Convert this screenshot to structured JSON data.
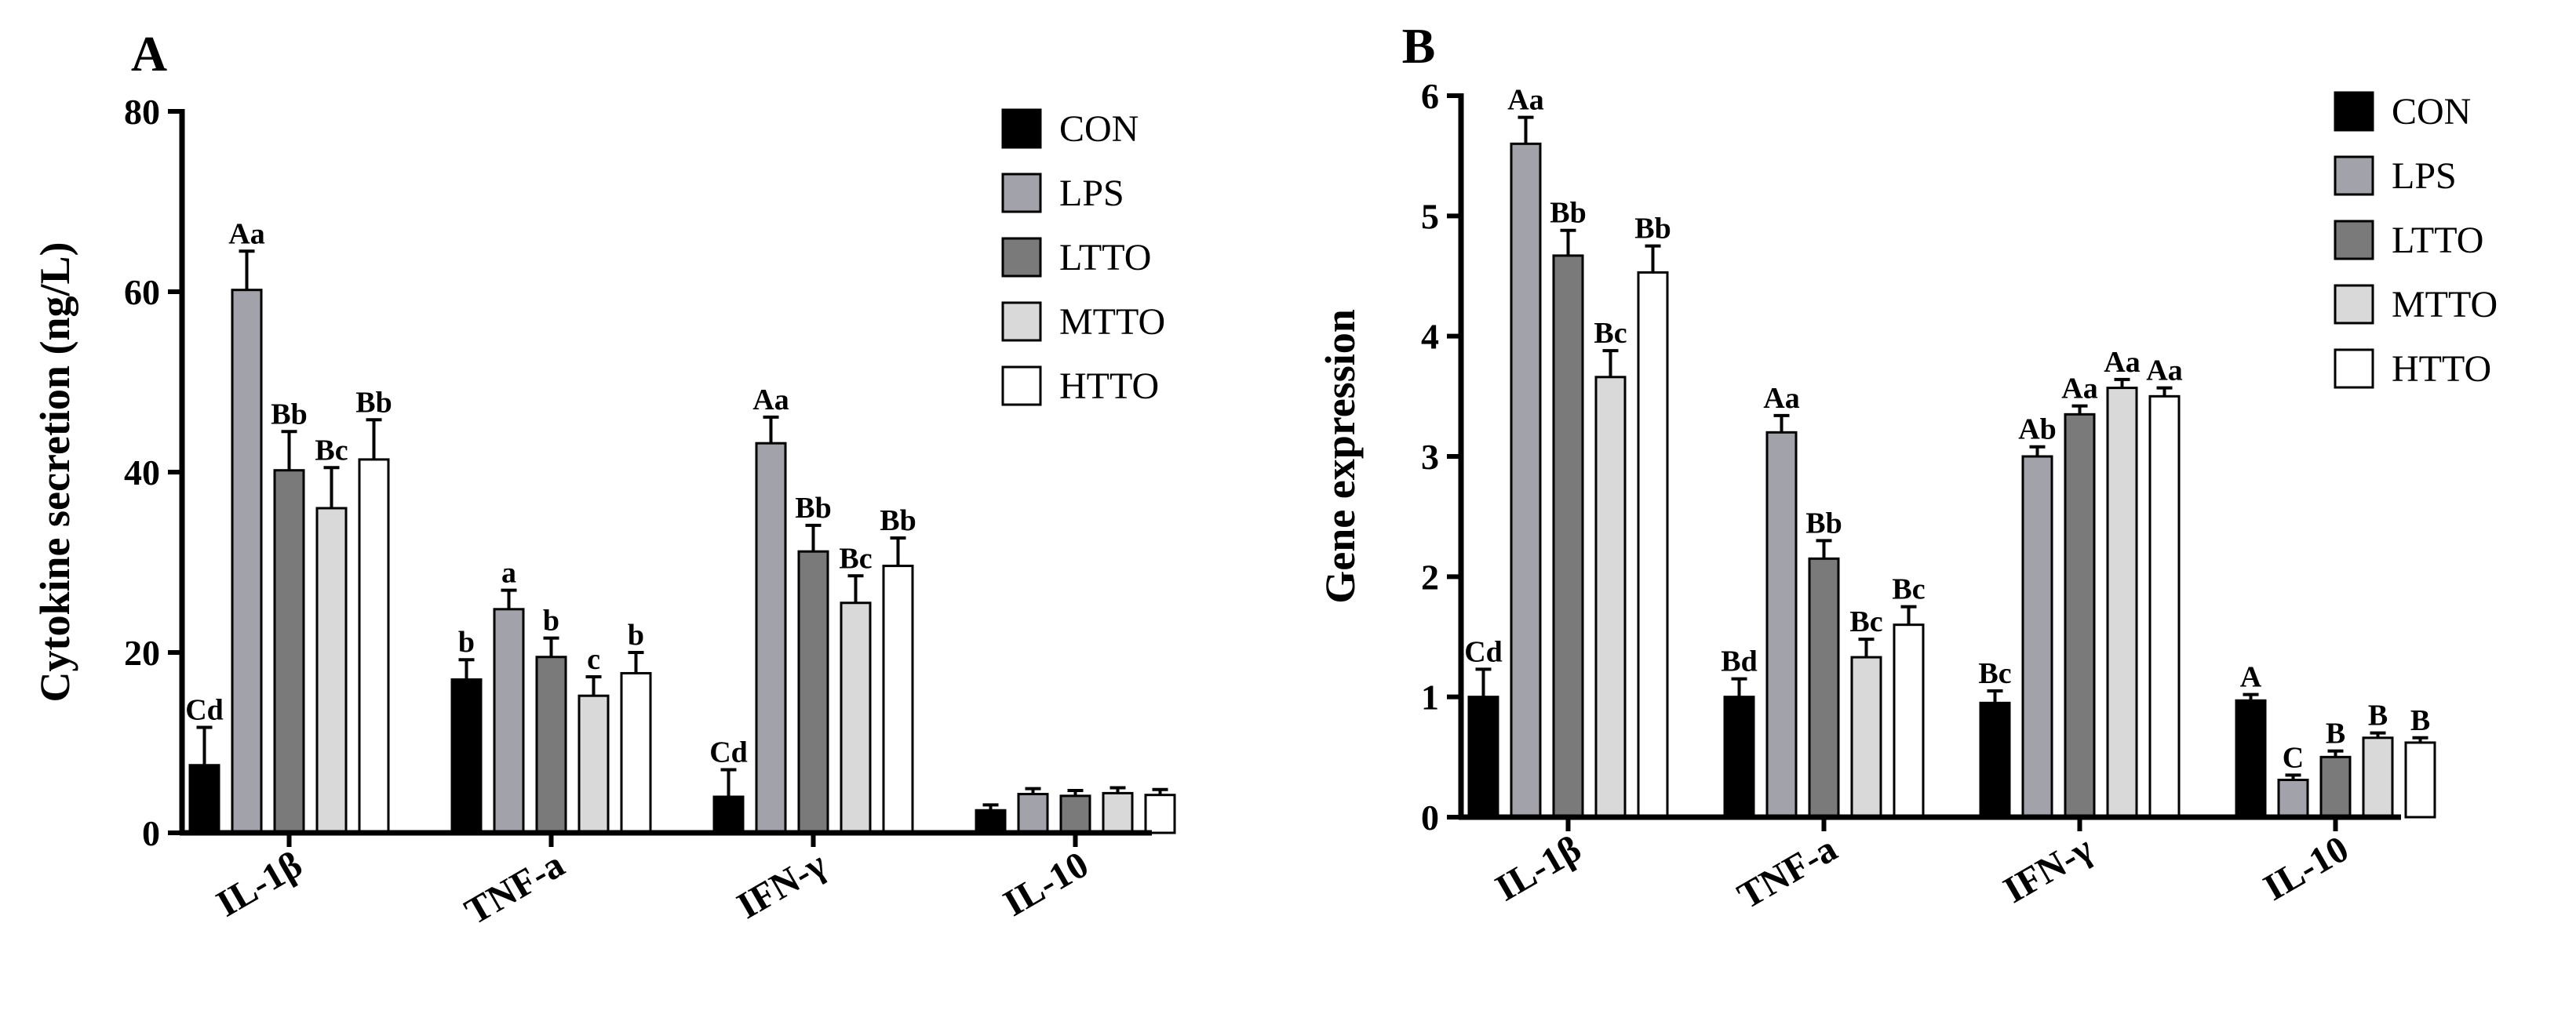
{
  "chart_data": [
    {
      "type": "bar",
      "panel": "A",
      "ylabel": "Cytokine secretion (ng/L)",
      "xlabel": "",
      "ylim": [
        0,
        80
      ],
      "yticks": [
        "0",
        "20",
        "40",
        "60",
        "80"
      ],
      "categories": [
        "IL-1β",
        "TNF-a",
        "IFN-γ",
        "IL-10"
      ],
      "legend_position": "top-right",
      "series": [
        {
          "name": "CON",
          "color": "#000000",
          "values": [
            7.5,
            17.0,
            4.0,
            2.5
          ],
          "errors": [
            4.2,
            2.2,
            3.0,
            0.6
          ],
          "labels": [
            "Cd",
            "b",
            "Cd",
            ""
          ]
        },
        {
          "name": "LPS",
          "color": "#a2a2aa",
          "values": [
            60.2,
            24.8,
            43.2,
            4.3
          ],
          "errors": [
            4.3,
            2.1,
            2.9,
            0.6
          ],
          "labels": [
            "Aa",
            "a",
            "Aa",
            ""
          ]
        },
        {
          "name": "LTTO",
          "color": "#7a7a7a",
          "values": [
            40.2,
            19.5,
            31.2,
            4.1
          ],
          "errors": [
            4.3,
            2.1,
            2.9,
            0.6
          ],
          "labels": [
            "Bb",
            "b",
            "Bb",
            ""
          ]
        },
        {
          "name": "MTTO",
          "color": "#d9d9d9",
          "values": [
            36.0,
            15.2,
            25.5,
            4.4
          ],
          "errors": [
            4.5,
            2.1,
            3.0,
            0.6
          ],
          "labels": [
            "Bc",
            "c",
            "Bc",
            ""
          ]
        },
        {
          "name": "HTTO",
          "color": "#ffffff",
          "values": [
            41.4,
            17.7,
            29.6,
            4.2
          ],
          "errors": [
            4.4,
            2.3,
            3.1,
            0.6
          ],
          "labels": [
            "Bb",
            "b",
            "Bb",
            ""
          ]
        }
      ]
    },
    {
      "type": "bar",
      "panel": "B",
      "ylabel": "Gene expression",
      "xlabel": "",
      "ylim": [
        0,
        6
      ],
      "yticks": [
        "0",
        "1",
        "2",
        "3",
        "4",
        "5",
        "6"
      ],
      "categories": [
        "IL-1β",
        "TNF-a",
        "IFN-γ",
        "IL-10"
      ],
      "legend_position": "top-right",
      "series": [
        {
          "name": "CON",
          "color": "#000000",
          "values": [
            1.0,
            1.0,
            0.95,
            0.97
          ],
          "errors": [
            0.23,
            0.15,
            0.1,
            0.05
          ],
          "labels": [
            "Cd",
            "Bd",
            "Bc",
            "A"
          ]
        },
        {
          "name": "LPS",
          "color": "#a2a2aa",
          "values": [
            5.6,
            3.2,
            3.0,
            0.31
          ],
          "errors": [
            0.22,
            0.14,
            0.08,
            0.04
          ],
          "labels": [
            "Aa",
            "Aa",
            "Ab",
            "C"
          ]
        },
        {
          "name": "LTTO",
          "color": "#7a7a7a",
          "values": [
            4.67,
            2.15,
            3.35,
            0.5
          ],
          "errors": [
            0.21,
            0.15,
            0.07,
            0.05
          ],
          "labels": [
            "Bb",
            "Bb",
            "Aa",
            "B"
          ]
        },
        {
          "name": "MTTO",
          "color": "#d9d9d9",
          "values": [
            3.66,
            1.33,
            3.57,
            0.66
          ],
          "errors": [
            0.22,
            0.15,
            0.07,
            0.04
          ],
          "labels": [
            "Bc",
            "Bc",
            "Aa",
            "B"
          ]
        },
        {
          "name": "HTTO",
          "color": "#ffffff",
          "values": [
            4.53,
            1.6,
            3.5,
            0.62
          ],
          "errors": [
            0.22,
            0.15,
            0.07,
            0.04
          ],
          "labels": [
            "Bb",
            "Bc",
            "Aa",
            "B"
          ]
        }
      ]
    }
  ]
}
